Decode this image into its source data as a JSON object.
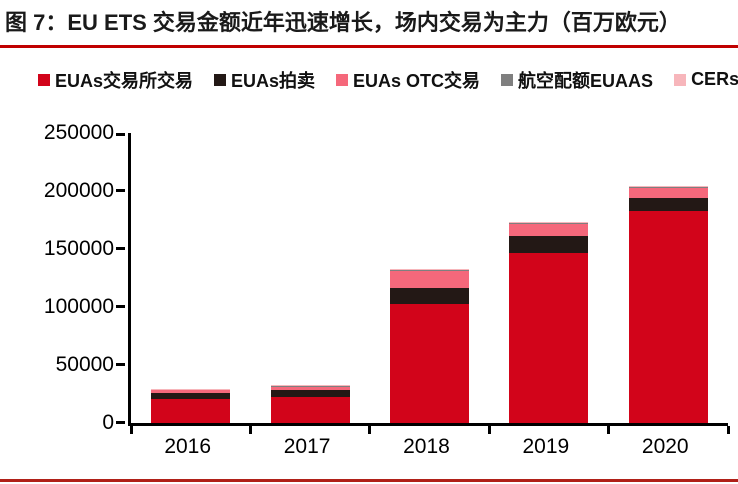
{
  "figure": {
    "title": "图 7：EU ETS 交易金额近年迅速增长，场内交易为主力（百万欧元）",
    "title_underline_color": "#C00000",
    "bottom_rule_color": "#B02018"
  },
  "chart_data": {
    "type": "bar",
    "stacked": true,
    "title": "EU ETS 交易金额（百万欧元）",
    "xlabel": "",
    "ylabel": "",
    "unit": "百万欧元",
    "grid": false,
    "legend_position": "top",
    "categories": [
      "2016",
      "2017",
      "2018",
      "2019",
      "2020"
    ],
    "series": [
      {
        "name": "EUAs交易所交易",
        "color": "#D2041A",
        "values": [
          20500,
          22000,
          102000,
          146000,
          182000
        ]
      },
      {
        "name": "EUAs拍卖",
        "color": "#231815",
        "values": [
          5000,
          6000,
          14000,
          15000,
          11500
        ]
      },
      {
        "name": "EUAs OTC交易",
        "color": "#F5687B",
        "values": [
          2300,
          3000,
          15000,
          10500,
          9000
        ]
      },
      {
        "name": "航空配额EUAAS",
        "color": "#7F7F7F",
        "values": [
          300,
          300,
          400,
          400,
          400
        ]
      },
      {
        "name": "CERs",
        "color": "#F7B6BB",
        "values": [
          800,
          800,
          1000,
          1000,
          1200
        ]
      }
    ],
    "totals": [
      28900,
      32100,
      132400,
      172900,
      204100
    ],
    "ylim": [
      0,
      250000
    ],
    "yticks": [
      0,
      50000,
      100000,
      150000,
      200000,
      250000
    ],
    "axis_color": "#000000"
  }
}
